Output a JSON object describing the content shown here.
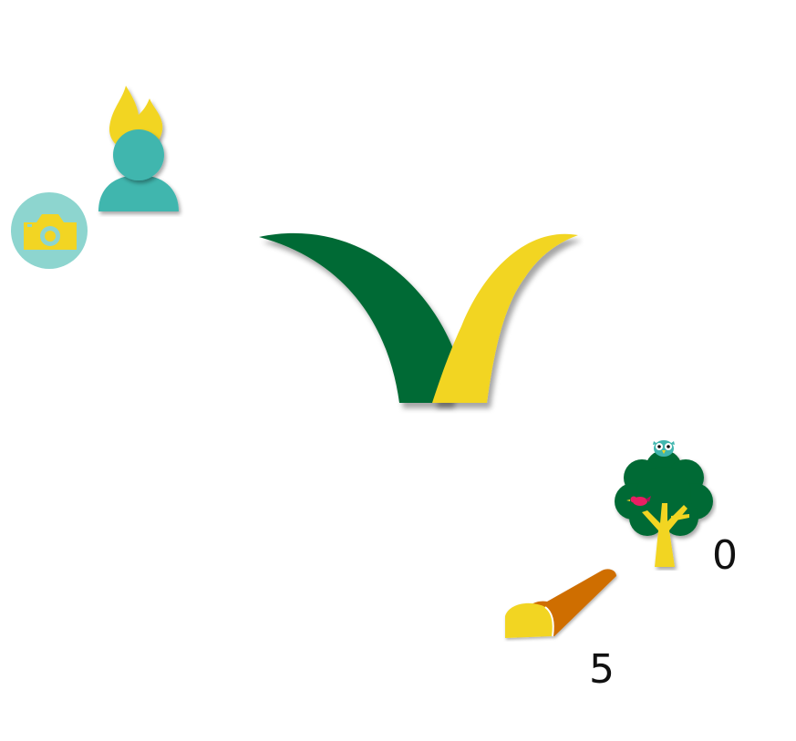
{
  "resources": {
    "trees": {
      "icon": "tree-with-owl-and-bird-icon",
      "count": "0"
    },
    "logs": {
      "icon": "log-icon",
      "count": "5"
    }
  },
  "toolbar": {
    "profile_icon": "user-with-flame-icon",
    "camera_icon": "camera-icon"
  },
  "logo": {
    "icon": "checkmark-leaf-logo"
  },
  "colors": {
    "dark_green": "#036b34",
    "yellow": "#f2d523",
    "teal": "#40b6ae",
    "light_teal": "#8dd5cf",
    "brown": "#cf6e06"
  }
}
